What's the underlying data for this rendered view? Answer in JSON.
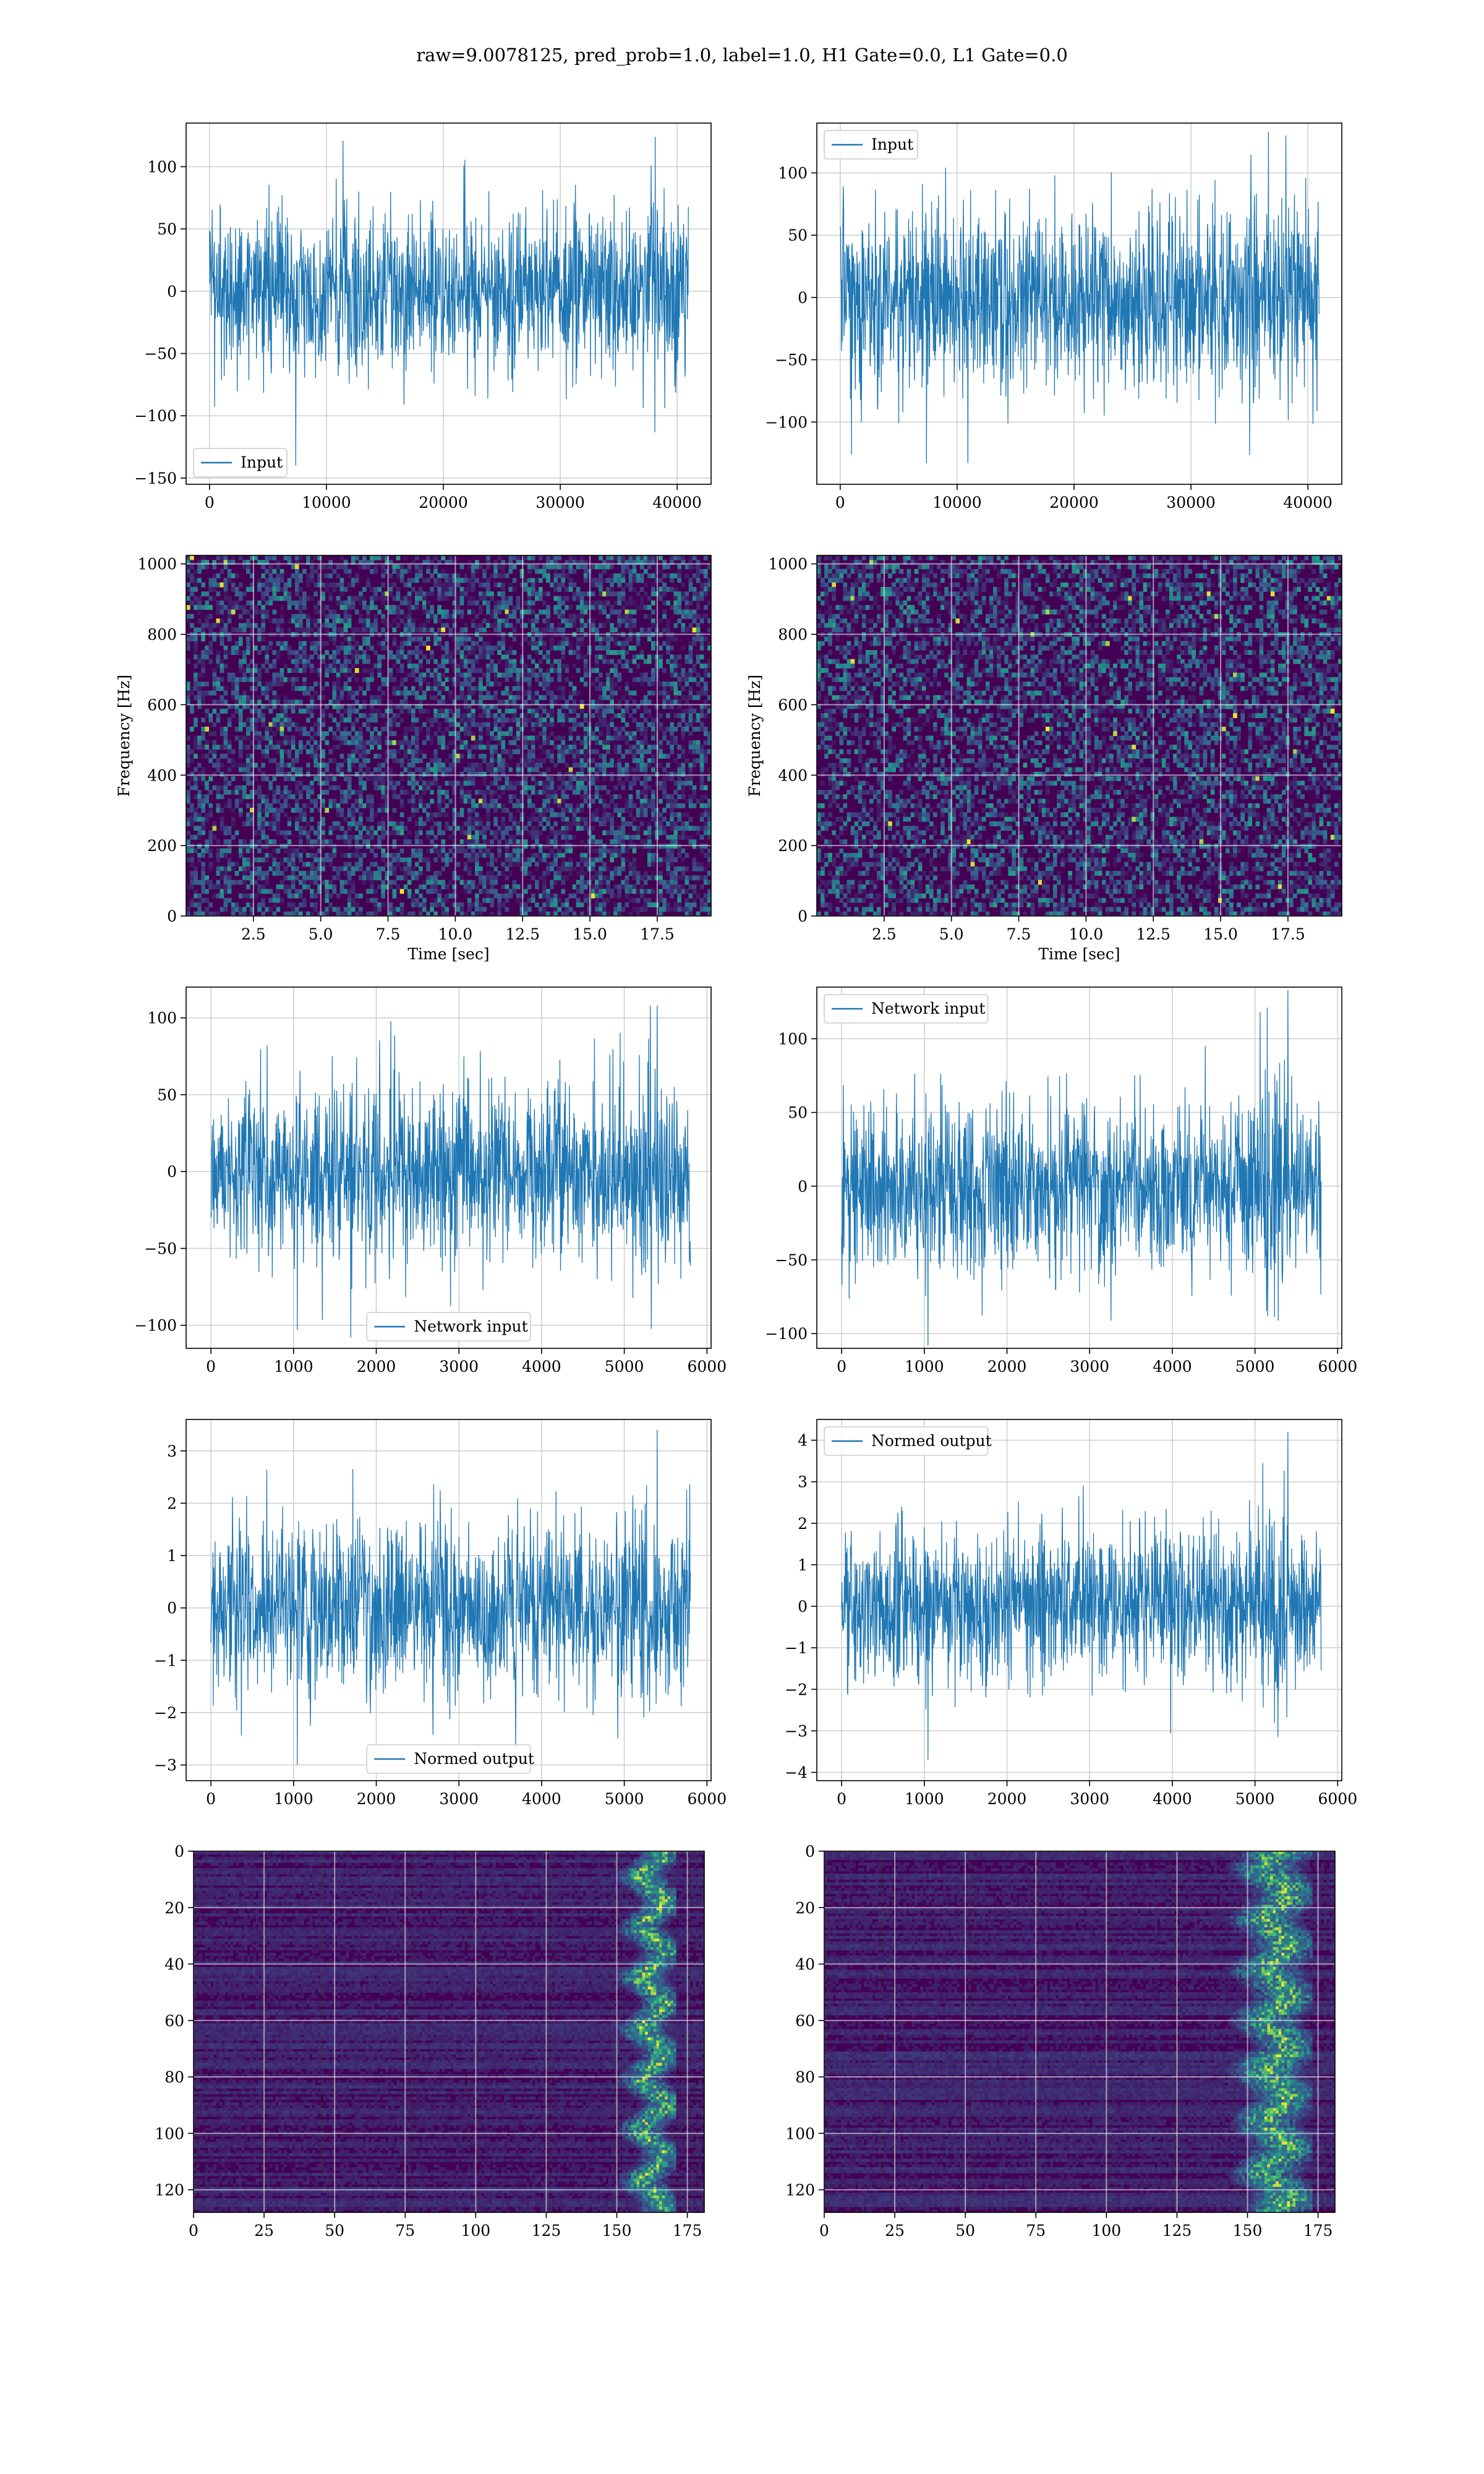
{
  "figure": {
    "suptitle": "raw=9.0078125, pred_prob=1.0, label=1.0, H1 Gate=0.0, L1 Gate=0.0"
  },
  "colors": {
    "line": "#1f77b4",
    "grid": "#d0d0d0",
    "viridis_low": "#440154",
    "viridis_mid": "#21918c",
    "viridis_high": "#fde725"
  },
  "chart_data": [
    {
      "id": "h1-input",
      "type": "line",
      "legend": {
        "label": "Input",
        "loc": "lower-left"
      },
      "xlim": [
        -2000,
        42900
      ],
      "ylim": [
        -155,
        135
      ],
      "xticks": [
        0,
        10000,
        20000,
        30000,
        40000
      ],
      "yticks": [
        -150,
        -100,
        -50,
        0,
        50,
        100
      ],
      "series": [
        {
          "name": "Input",
          "n": 40960,
          "x_range": [
            0,
            40960
          ],
          "envelope": [
            -90,
            90
          ],
          "peaks": [
            124,
            -140
          ],
          "bursts": []
        }
      ],
      "grid": true
    },
    {
      "id": "l1-input",
      "type": "line",
      "legend": {
        "label": "Input",
        "loc": "upper-left"
      },
      "xlim": [
        -2000,
        42900
      ],
      "ylim": [
        -150,
        140
      ],
      "xticks": [
        0,
        10000,
        20000,
        30000,
        40000
      ],
      "yticks": [
        -100,
        -50,
        0,
        50,
        100
      ],
      "series": [
        {
          "name": "Input",
          "n": 40960,
          "x_range": [
            0,
            40960
          ],
          "envelope": [
            -100,
            95
          ],
          "peaks": [
            130,
            -133
          ],
          "bursts": []
        }
      ],
      "grid": true
    },
    {
      "id": "h1-spectrogram",
      "type": "heatmap",
      "xlabel": "Time [sec]",
      "ylabel": "Frequency [Hz]",
      "xlim": [
        0,
        19.5
      ],
      "ylim": [
        0,
        1024
      ],
      "xticks": [
        2.5,
        5.0,
        7.5,
        10.0,
        12.5,
        15.0,
        17.5
      ],
      "yticks": [
        0,
        200,
        400,
        600,
        800,
        1000
      ],
      "colormap": "viridis",
      "grid": true
    },
    {
      "id": "l1-spectrogram",
      "type": "heatmap",
      "xlabel": "Time [sec]",
      "ylabel": "Frequency [Hz]",
      "xlim": [
        0,
        19.5
      ],
      "ylim": [
        0,
        1024
      ],
      "xticks": [
        2.5,
        5.0,
        7.5,
        10.0,
        12.5,
        15.0,
        17.5
      ],
      "yticks": [
        0,
        200,
        400,
        600,
        800,
        1000
      ],
      "colormap": "viridis",
      "grid": true
    },
    {
      "id": "h1-network-input",
      "type": "line",
      "legend": {
        "label": "Network input",
        "loc": "lower-center"
      },
      "xlim": [
        -300,
        6050
      ],
      "ylim": [
        -115,
        120
      ],
      "xticks": [
        0,
        1000,
        2000,
        3000,
        4000,
        5000,
        6000
      ],
      "yticks": [
        -100,
        -50,
        0,
        50,
        100
      ],
      "series": [
        {
          "name": "Network input",
          "n": 5800,
          "x_range": [
            0,
            5800
          ],
          "envelope": [
            -75,
            75
          ],
          "peaks": [
            108,
            -103
          ],
          "bursts": [
            [
              5100,
              5350,
              1.25
            ]
          ]
        }
      ],
      "grid": true
    },
    {
      "id": "l1-network-input",
      "type": "line",
      "legend": {
        "label": "Network input",
        "loc": "upper-left"
      },
      "xlim": [
        -300,
        6050
      ],
      "ylim": [
        -110,
        135
      ],
      "xticks": [
        0,
        1000,
        2000,
        3000,
        4000,
        5000,
        6000
      ],
      "yticks": [
        -100,
        -50,
        0,
        50,
        100
      ],
      "series": [
        {
          "name": "Network input",
          "n": 5800,
          "x_range": [
            0,
            5800
          ],
          "envelope": [
            -75,
            75
          ],
          "peaks": [
            133,
            -108
          ],
          "bursts": [
            [
              5050,
              5400,
              1.6
            ]
          ]
        }
      ],
      "grid": true
    },
    {
      "id": "h1-normed-output",
      "type": "line",
      "legend": {
        "label": "Normed output",
        "loc": "lower-center"
      },
      "xlim": [
        -300,
        6050
      ],
      "ylim": [
        -3.3,
        3.6
      ],
      "xticks": [
        0,
        1000,
        2000,
        3000,
        4000,
        5000,
        6000
      ],
      "yticks": [
        -3,
        -2,
        -1,
        0,
        1,
        2,
        3
      ],
      "series": [
        {
          "name": "Normed output",
          "n": 5800,
          "x_range": [
            0,
            5800
          ],
          "envelope": [
            -2.2,
            2.2
          ],
          "peaks": [
            3.4,
            -3.0
          ],
          "bursts": [
            [
              5100,
              5350,
              1.25
            ]
          ]
        }
      ],
      "grid": true
    },
    {
      "id": "l1-normed-output",
      "type": "line",
      "legend": {
        "label": "Normed output",
        "loc": "upper-left"
      },
      "xlim": [
        -300,
        6050
      ],
      "ylim": [
        -4.2,
        4.5
      ],
      "xticks": [
        0,
        1000,
        2000,
        3000,
        4000,
        5000,
        6000
      ],
      "yticks": [
        -4,
        -3,
        -2,
        -1,
        0,
        1,
        2,
        3,
        4
      ],
      "series": [
        {
          "name": "Normed output",
          "n": 5800,
          "x_range": [
            0,
            5800
          ],
          "envelope": [
            -2.4,
            2.4
          ],
          "peaks": [
            4.2,
            -3.7
          ],
          "bursts": [
            [
              5050,
              5400,
              1.6
            ]
          ]
        }
      ],
      "grid": true
    },
    {
      "id": "h1-feature-map",
      "type": "heatmap",
      "xlim": [
        0,
        181
      ],
      "ylim": [
        128,
        0
      ],
      "xticks": [
        0,
        25,
        50,
        75,
        100,
        125,
        150,
        175
      ],
      "yticks": [
        0,
        20,
        40,
        60,
        80,
        100,
        120
      ],
      "colormap": "viridis",
      "bright_band": [
        155,
        170
      ],
      "grid": true
    },
    {
      "id": "l1-feature-map",
      "type": "heatmap",
      "xlim": [
        0,
        181
      ],
      "ylim": [
        128,
        0
      ],
      "xticks": [
        0,
        25,
        50,
        75,
        100,
        125,
        150,
        175
      ],
      "yticks": [
        0,
        20,
        40,
        60,
        80,
        100,
        120
      ],
      "colormap": "viridis",
      "bright_band": [
        148,
        172
      ],
      "grid": true
    }
  ]
}
